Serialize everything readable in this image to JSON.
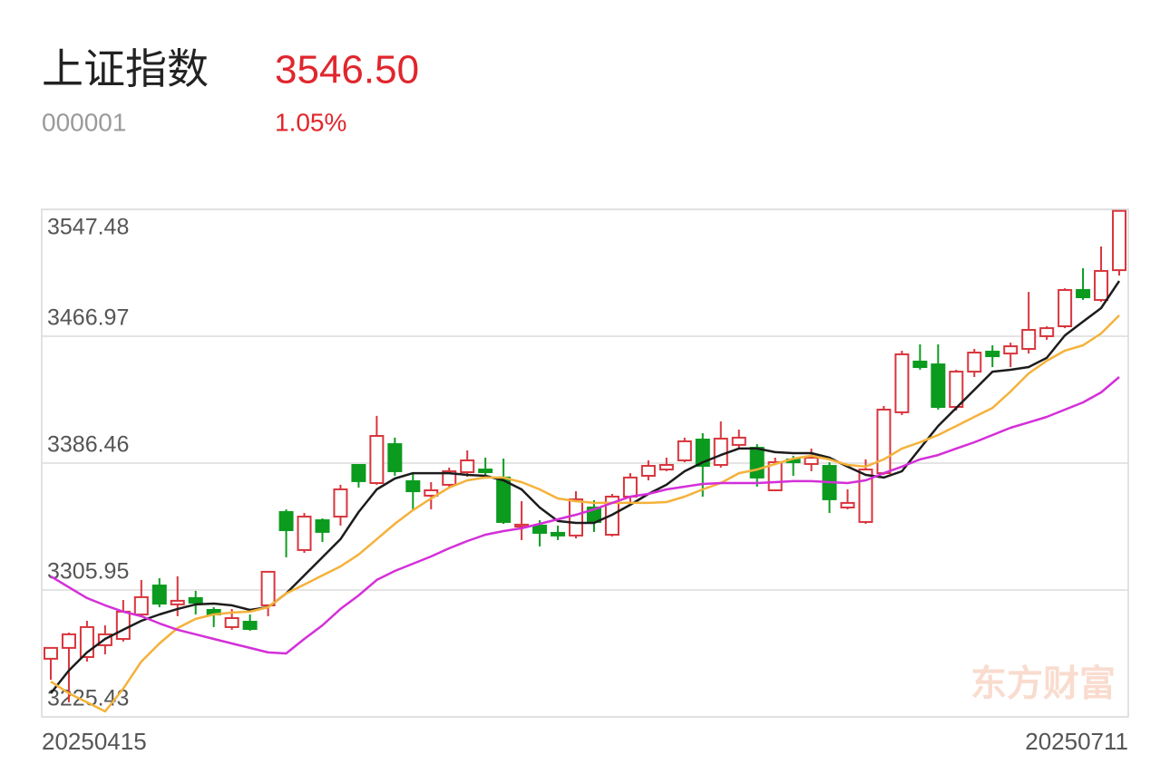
{
  "header": {
    "name": "上证指数",
    "price": "3546.50",
    "code": "000001",
    "change": "1.05%"
  },
  "watermark": "东方财富",
  "chart_data": {
    "type": "candlestick",
    "categories": [
      "20250415",
      null,
      null,
      null,
      null,
      null,
      null,
      null,
      null,
      null,
      null,
      null,
      null,
      null,
      null,
      null,
      null,
      null,
      null,
      null,
      null,
      null,
      null,
      null,
      null,
      null,
      null,
      null,
      null,
      null,
      null,
      null,
      null,
      null,
      null,
      null,
      null,
      null,
      null,
      null,
      null,
      null,
      null,
      null,
      null,
      null,
      null,
      null,
      null,
      null,
      null,
      null,
      null,
      null,
      null,
      null,
      null,
      null,
      null,
      "20250711"
    ],
    "open": [
      3262.3,
      3269.2,
      3263.4,
      3270.9,
      3274.9,
      3290.4,
      3308.8,
      3296.8,
      3300.8,
      3293.3,
      3282.4,
      3285.8,
      3296.2,
      3355.4,
      3331.3,
      3350.2,
      3352.5,
      3385.3,
      3373.8,
      3398.5,
      3375.0,
      3365.8,
      3372.7,
      3380.7,
      3382.4,
      3377.3,
      3346.2,
      3346.8,
      3342.2,
      3340.5,
      3358.3,
      3341.0,
      3365.2,
      3378.4,
      3382.4,
      3388.2,
      3401.4,
      3385.3,
      3398.0,
      3396.2,
      3369.2,
      3388.8,
      3385.9,
      3384.7,
      3358.3,
      3349.1,
      3380.1,
      3418.7,
      3450.9,
      3449.1,
      3422.1,
      3444.5,
      3457.2,
      3456.0,
      3458.9,
      3467.0,
      3473.3,
      3496.3,
      3490.0,
      3508.9
    ],
    "high": [
      3269.2,
      3278.9,
      3286.4,
      3283.5,
      3299.6,
      3312.3,
      3313.4,
      3314.6,
      3305.4,
      3295.0,
      3293.9,
      3290.4,
      3317.5,
      3357.1,
      3354.8,
      3351.4,
      3372.7,
      3385.9,
      3416.4,
      3402.6,
      3379.6,
      3374.4,
      3383.6,
      3394.5,
      3389.9,
      3389.3,
      3362.3,
      3350.2,
      3346.8,
      3368.6,
      3362.9,
      3366.9,
      3380.1,
      3388.2,
      3389.9,
      3402.6,
      3405.4,
      3412.9,
      3407.7,
      3398.5,
      3389.9,
      3391.1,
      3395.7,
      3387.0,
      3369.8,
      3388.8,
      3422.7,
      3457.8,
      3461.8,
      3461.8,
      3445.7,
      3458.9,
      3461.2,
      3462.9,
      3495.1,
      3473.3,
      3497.4,
      3510.1,
      3523.9,
      3546.5
    ],
    "low": [
      3249.0,
      3234.7,
      3260.5,
      3265.1,
      3273.2,
      3289.3,
      3295.0,
      3289.3,
      3290.4,
      3282.4,
      3280.7,
      3280.1,
      3289.3,
      3326.7,
      3329.5,
      3336.4,
      3346.8,
      3370.9,
      3372.7,
      3378.4,
      3357.1,
      3357.1,
      3371.5,
      3377.8,
      3376.7,
      3347.9,
      3337.6,
      3333.6,
      3337.6,
      3338.7,
      3342.8,
      3339.9,
      3360.0,
      3375.5,
      3381.3,
      3387.0,
      3365.2,
      3383.6,
      3395.1,
      3371.5,
      3368.6,
      3378.4,
      3381.3,
      3354.8,
      3357.1,
      3347.9,
      3379.0,
      3416.9,
      3445.7,
      3420.4,
      3419.8,
      3441.1,
      3447.4,
      3447.4,
      3456.0,
      3464.7,
      3472.1,
      3490.0,
      3488.8,
      3505.5
    ],
    "close": [
      3269.2,
      3277.8,
      3282.4,
      3277.8,
      3292.2,
      3301.4,
      3297.3,
      3299.1,
      3297.9,
      3290.4,
      3288.1,
      3281.2,
      3317.5,
      3343.9,
      3352.5,
      3342.8,
      3369.8,
      3375.0,
      3403.7,
      3381.3,
      3368.6,
      3369.2,
      3381.3,
      3388.2,
      3380.7,
      3349.1,
      3347.4,
      3342.2,
      3340.5,
      3363.5,
      3349.1,
      3365.2,
      3377.3,
      3384.7,
      3385.3,
      3400.3,
      3384.7,
      3402.0,
      3402.6,
      3377.3,
      3387.0,
      3387.0,
      3389.9,
      3363.5,
      3361.2,
      3382.4,
      3420.4,
      3455.5,
      3447.4,
      3422.1,
      3444.5,
      3456.6,
      3454.3,
      3460.6,
      3471.0,
      3472.1,
      3496.3,
      3491.7,
      3508.4,
      3546.5
    ],
    "up_color": "#d8353d",
    "down_color": "#0b9b1f",
    "series": [
      {
        "color": "#1c1c1c",
        "values": [
          3240.4,
          3254.8,
          3266.3,
          3274.9,
          3280.7,
          3286.4,
          3290.4,
          3293.9,
          3296.8,
          3297.3,
          3296.2,
          3293.3,
          3295.0,
          3303.7,
          3315.2,
          3326.7,
          3338.2,
          3355.4,
          3369.8,
          3376.7,
          3380.1,
          3380.1,
          3380.1,
          3379.0,
          3378.4,
          3375.5,
          3369.8,
          3358.3,
          3349.7,
          3348.5,
          3348.5,
          3353.7,
          3360.0,
          3366.9,
          3372.7,
          3381.3,
          3387.0,
          3391.6,
          3395.7,
          3395.7,
          3393.4,
          3392.8,
          3392.8,
          3389.9,
          3384.2,
          3379.0,
          3377.3,
          3381.3,
          3395.7,
          3410.0,
          3421.5,
          3433.0,
          3444.5,
          3445.7,
          3447.4,
          3453.2,
          3467.5,
          3476.2,
          3484.8,
          3502.0
        ]
      },
      {
        "color": "#f4b23a",
        "values": [
          3247.9,
          3240.4,
          3234.7,
          3228.9,
          3243.3,
          3260.5,
          3272.0,
          3281.8,
          3287.6,
          3290.4,
          3291.6,
          3292.2,
          3295.0,
          3303.7,
          3309.4,
          3315.2,
          3320.9,
          3328.4,
          3338.2,
          3347.9,
          3356.6,
          3364.0,
          3370.9,
          3375.5,
          3377.3,
          3377.3,
          3374.4,
          3369.8,
          3364.0,
          3362.3,
          3361.2,
          3361.2,
          3361.2,
          3361.2,
          3361.7,
          3365.2,
          3369.8,
          3373.8,
          3380.1,
          3382.4,
          3385.9,
          3389.3,
          3391.1,
          3388.8,
          3385.3,
          3384.2,
          3388.8,
          3395.7,
          3399.7,
          3404.3,
          3410.0,
          3415.8,
          3421.5,
          3431.9,
          3443.4,
          3451.4,
          3457.8,
          3461.2,
          3468.7,
          3480.2
        ]
      },
      {
        "color": "#d42fd9",
        "values": [
          3314.6,
          3307.7,
          3300.8,
          3296.2,
          3292.2,
          3289.3,
          3284.7,
          3280.7,
          3277.8,
          3274.9,
          3272.0,
          3269.2,
          3266.3,
          3265.7,
          3274.9,
          3283.5,
          3293.9,
          3302.5,
          3312.3,
          3318.0,
          3322.6,
          3327.2,
          3332.4,
          3337.0,
          3341.0,
          3343.3,
          3345.1,
          3347.9,
          3350.8,
          3353.7,
          3357.1,
          3361.2,
          3365.2,
          3366.9,
          3369.8,
          3371.5,
          3373.2,
          3373.8,
          3373.8,
          3373.8,
          3374.4,
          3375.0,
          3375.0,
          3374.4,
          3373.8,
          3375.5,
          3380.1,
          3384.2,
          3388.8,
          3391.6,
          3395.7,
          3399.7,
          3404.3,
          3408.9,
          3412.3,
          3415.8,
          3420.4,
          3425.0,
          3431.3,
          3441.1
        ]
      }
    ],
    "ylim": [
      3225.43,
      3547.48
    ],
    "yticks": [
      3547.48,
      3466.97,
      3386.46,
      3305.95,
      3225.43
    ],
    "grid": true
  }
}
